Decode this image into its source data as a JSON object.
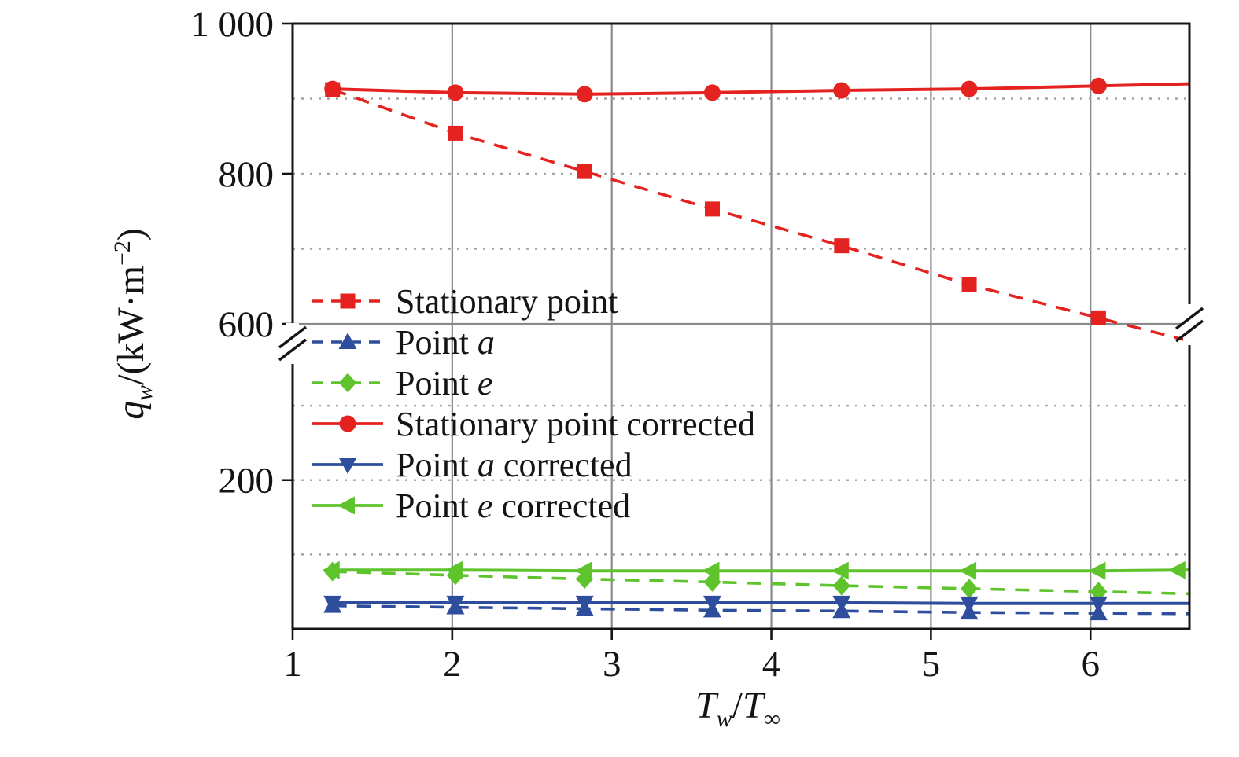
{
  "chart_data": {
    "type": "line",
    "title": "",
    "xlabel_parts": {
      "t1": "T",
      "sub1": "w",
      "slash": "/",
      "t2": "T",
      "sub2": "∞"
    },
    "ylabel_parts": {
      "q": "q",
      "sub": "w",
      "mid": "/(kW·m",
      "sup": "−2",
      "end": ")"
    },
    "x_ticks": [
      {
        "label": "1",
        "value": 1
      },
      {
        "label": "2",
        "value": 2
      },
      {
        "label": "3",
        "value": 3
      },
      {
        "label": "4",
        "value": 4
      },
      {
        "label": "5",
        "value": 5
      },
      {
        "label": "6",
        "value": 6
      }
    ],
    "y_ticks": [
      {
        "label": "1 000",
        "value": 1000
      },
      {
        "label": "800",
        "value": 800
      },
      {
        "label": "600",
        "value": 600
      },
      {
        "label": "200",
        "value": 200
      }
    ],
    "x_range": [
      1,
      6.62
    ],
    "y_axis": {
      "broken": true,
      "break_at": 600,
      "upper_range": [
        600,
        1000
      ],
      "lower_range": [
        0,
        410
      ]
    },
    "grid": {
      "vertical_solid_at": [
        2,
        3,
        4,
        5,
        6
      ],
      "horizontal_dotted_at": [
        100,
        200,
        300,
        700,
        800,
        900
      ],
      "horizontal_solid_at": [
        600
      ],
      "solid_color": "#8a8a8a",
      "dotted_color": "#a3a3a3"
    },
    "x": [
      1.25,
      2.02,
      2.83,
      3.63,
      4.44,
      5.24,
      6.05
    ],
    "series": [
      {
        "label_pre": "Stationary point",
        "label_it": "",
        "label_post": "",
        "color": "#e42320",
        "dash": true,
        "marker": "square",
        "values": [
          912,
          854,
          803,
          753,
          704,
          652,
          608
        ]
      },
      {
        "label_pre": "Point ",
        "label_it": "a",
        "label_post": "",
        "color": "#2e4d9d",
        "dash": true,
        "marker": "triangle-up",
        "values": [
          31,
          29,
          27,
          25,
          24,
          22,
          21
        ]
      },
      {
        "label_pre": "Point ",
        "label_it": "e",
        "label_post": "",
        "color": "#5fc32c",
        "dash": true,
        "marker": "diamond",
        "values": [
          77,
          72,
          67,
          63,
          58,
          54,
          50
        ]
      },
      {
        "label_pre": "Stationary point corrected",
        "label_it": "",
        "label_post": "",
        "color": "#e42320",
        "dash": false,
        "marker": "circle",
        "values": [
          913,
          908,
          906,
          908,
          911,
          913,
          917
        ]
      },
      {
        "label_pre": "Point ",
        "label_it": "a",
        "label_post": " corrected",
        "color": "#2e4d9d",
        "dash": false,
        "marker": "triangle-down",
        "values": [
          35,
          35,
          35,
          35,
          35,
          34,
          34
        ]
      },
      {
        "label_pre": "Point ",
        "label_it": "e",
        "label_post": " corrected",
        "color": "#5fc32c",
        "dash": false,
        "marker": "triangle-left",
        "x": [
          1.25,
          2.02,
          2.83,
          3.63,
          4.44,
          5.24,
          6.05,
          6.55
        ],
        "values": [
          79,
          79,
          78,
          78,
          78,
          78,
          78,
          79
        ]
      }
    ],
    "legend_position": "middle-left",
    "axis_color": "#141414",
    "background": "#ffffff"
  }
}
